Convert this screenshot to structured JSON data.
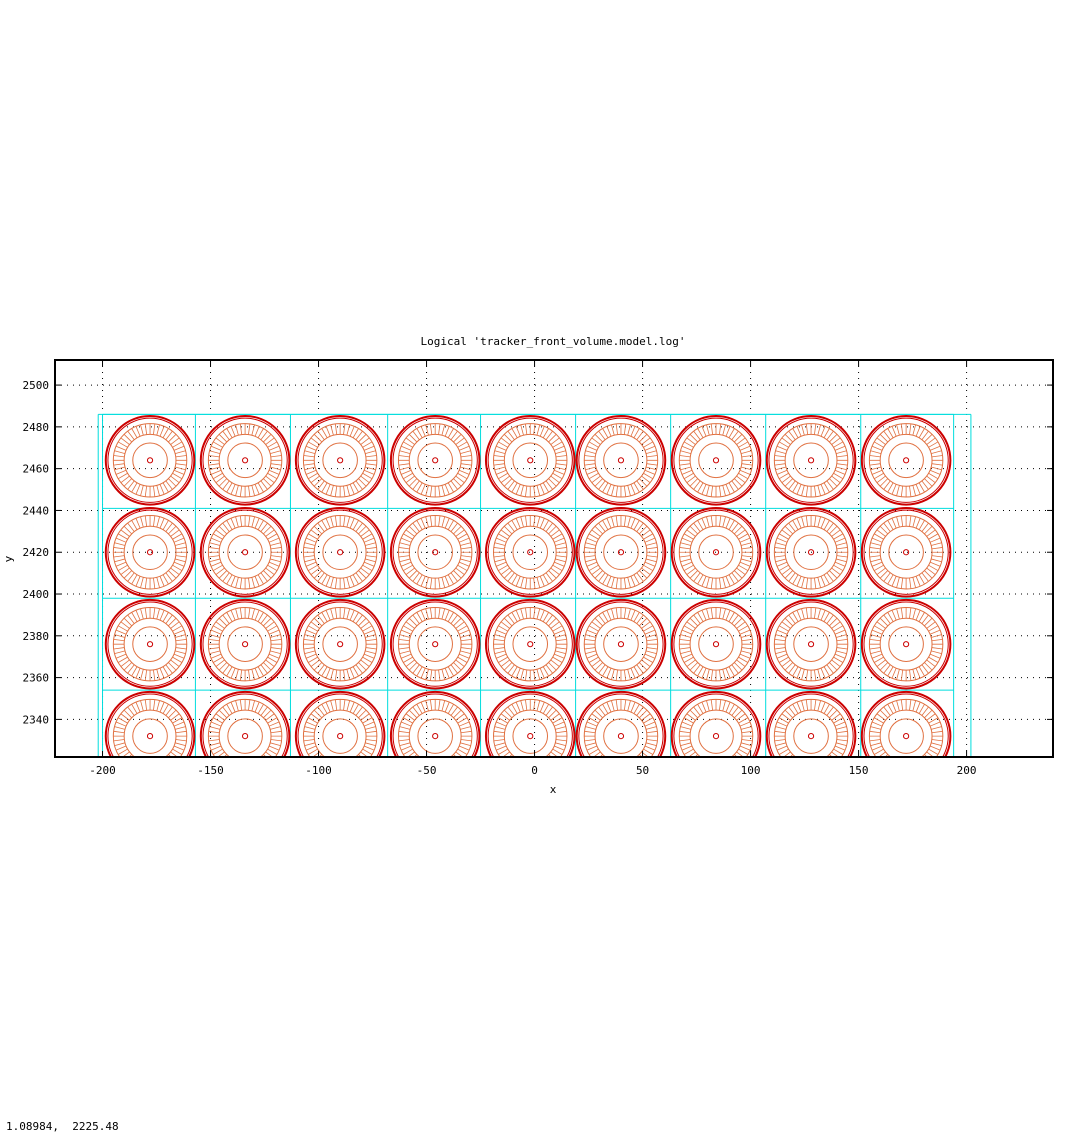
{
  "chart_data": {
    "type": "scatter",
    "title": "Logical 'tracker_front_volume.model.log'",
    "xlabel": "x",
    "ylabel": "y",
    "xlim": [
      -222,
      240
    ],
    "ylim": [
      2322,
      2512
    ],
    "xticks": [
      -200,
      -150,
      -100,
      -50,
      0,
      50,
      100,
      150,
      200
    ],
    "yticks": [
      2340,
      2360,
      2380,
      2400,
      2420,
      2440,
      2460,
      2480,
      2500
    ],
    "xtick_labels": [
      "-200",
      "-150",
      "-100",
      "-50",
      "0",
      "50",
      "100",
      "150",
      "200"
    ],
    "ytick_labels": [
      "2340",
      "2360",
      "2380",
      "2400",
      "2420",
      "2440",
      "2460",
      "2480",
      "2500"
    ],
    "grid": true,
    "legend": "none",
    "module_centers_x": [
      -178,
      -134,
      -90,
      -46,
      -2,
      40,
      84,
      128,
      172
    ],
    "module_centers_y": [
      2464,
      2420,
      2376,
      2332
    ],
    "cell_boundaries_x": [
      -200,
      -157,
      -113,
      -68,
      -25,
      19,
      63,
      107,
      151,
      194
    ],
    "cell_boundaries_y": [
      2486,
      2441,
      2398,
      2354
    ],
    "envelope": {
      "x": [
        -202,
        202
      ],
      "y": [
        2322,
        2486
      ]
    },
    "ring_radii": {
      "outer": 20.5,
      "outer2": 19.5,
      "tube_outer": 17,
      "tube_inner": 12,
      "inner": 8,
      "core": 1.2
    },
    "colors": {
      "module": "#cc0000",
      "tube": "#e07040",
      "cell": "#00dddd",
      "axes": "#000000"
    }
  },
  "cursor_readout": "1.08984,  2225.48"
}
